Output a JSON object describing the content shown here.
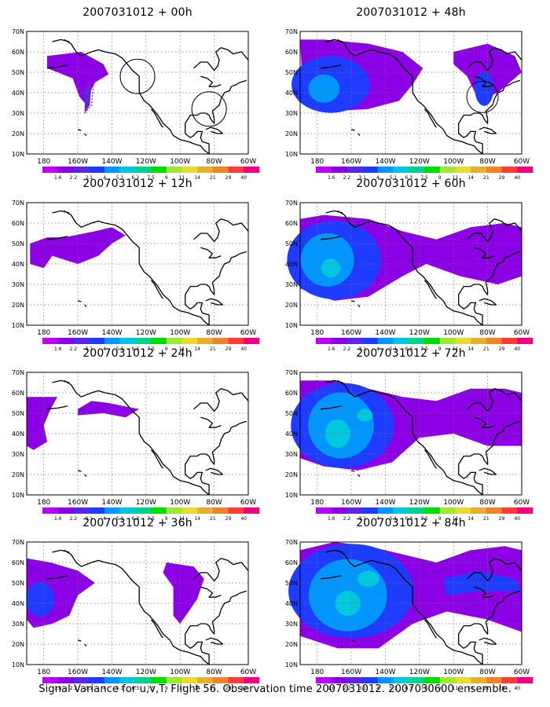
{
  "colorbar": {
    "labels": [
      "1.6",
      "2.2",
      "3.1",
      "4",
      "5.1",
      "6.3",
      "7.5",
      "9",
      "11",
      "14",
      "21",
      "29",
      "40"
    ],
    "colors": [
      "#c000ff",
      "#8c00e6",
      "#5a28e0",
      "#1e3cff",
      "#0096ff",
      "#00c8dc",
      "#00d28c",
      "#00dc00",
      "#a0e632",
      "#e6dc32",
      "#e6af2d",
      "#f08228",
      "#fa3c3c",
      "#f00082"
    ]
  },
  "axes": {
    "x_ticks": [
      "180",
      "160W",
      "140W",
      "120W",
      "100W",
      "80W",
      "60W"
    ],
    "y_ticks": [
      "10N",
      "20N",
      "30N",
      "40N",
      "50N",
      "60N",
      "70N"
    ]
  },
  "panels": [
    {
      "id": "p00",
      "title": "2007031012 + 00h"
    },
    {
      "id": "p12",
      "title": "2007031012 + 12h"
    },
    {
      "id": "p24",
      "title": "2007031012 + 24h"
    },
    {
      "id": "p36",
      "title": "2007031012 + 36h"
    },
    {
      "id": "p48",
      "title": "2007031012 + 48h"
    },
    {
      "id": "p60",
      "title": "2007031012 + 60h"
    },
    {
      "id": "p72",
      "title": "2007031012 + 72h"
    },
    {
      "id": "p84",
      "title": "2007031012 + 84h"
    }
  ],
  "footer": "Signal Variance for u,v,T. Flight 56. Observation time 2007031012. 2007030600 ensemble."
}
